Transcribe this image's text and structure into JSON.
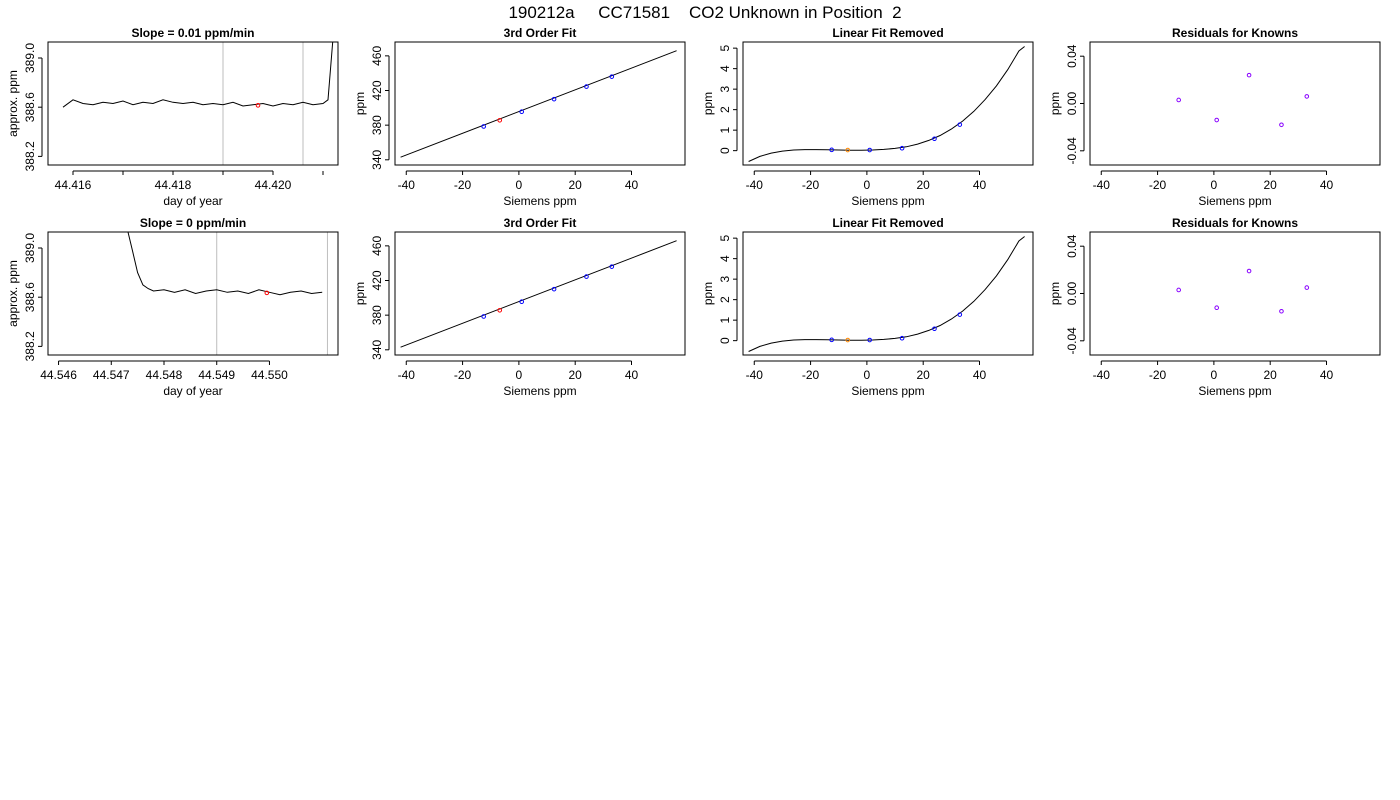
{
  "page_title": "190212a     CC71581    CO2 Unknown in Position  2",
  "colors": {
    "line": "#000000",
    "known_point": "#0000ff",
    "unknown_point": "#ff0000",
    "residual_point": "#8800ff",
    "unknown_removed_point": "#ff8800",
    "marker_line": "#bebebe"
  },
  "chart_data": [
    {
      "type": "line",
      "title": "Slope =  0.01  ppm/min",
      "xlabel": "day of year",
      "ylabel": "approx. ppm",
      "xlim": [
        44.4155,
        44.4213
      ],
      "ylim": [
        388.13,
        389.13
      ],
      "xticks": [
        "44.416",
        "44.418",
        "44.420"
      ],
      "xtick_values": [
        44.416,
        44.418,
        44.42
      ],
      "xminor_ticks": [
        44.417,
        44.419,
        44.421
      ],
      "yticks": [
        "388.2",
        "388.6",
        "389.0"
      ],
      "ytick_values": [
        388.2,
        388.6,
        389.0
      ],
      "markers_x": [
        44.419,
        44.4206
      ],
      "series": [
        {
          "x": [
            44.4158,
            44.416,
            44.4162,
            44.4164,
            44.4166,
            44.4168,
            44.417,
            44.4172,
            44.4174,
            44.4176,
            44.4178,
            44.418,
            44.4182,
            44.4184,
            44.4186,
            44.4188,
            44.419,
            44.4192,
            44.4194,
            44.4196,
            44.4198,
            44.42,
            44.4202,
            44.4204,
            44.4206,
            44.4208,
            44.421,
            44.4211,
            44.4212
          ],
          "y": [
            388.6,
            388.66,
            388.63,
            388.62,
            388.64,
            388.63,
            388.65,
            388.62,
            388.64,
            388.63,
            388.66,
            388.64,
            388.63,
            388.64,
            388.62,
            388.63,
            388.62,
            388.64,
            388.61,
            388.62,
            388.63,
            388.61,
            388.63,
            388.62,
            388.64,
            388.62,
            388.63,
            388.66,
            389.16
          ]
        }
      ],
      "highlight_point": {
        "x": 44.4197,
        "y": 388.615
      }
    },
    {
      "type": "scatter",
      "title": "3rd Order Fit",
      "xlabel": "Siemens ppm",
      "ylabel": "ppm",
      "xlim": [
        -44,
        59
      ],
      "ylim": [
        334,
        476
      ],
      "xticks": [
        "-40",
        "-20",
        "0",
        "20",
        "40"
      ],
      "xtick_values": [
        -40,
        -20,
        0,
        20,
        40
      ],
      "yticks": [
        "340",
        "380",
        "420",
        "460"
      ],
      "ytick_values": [
        340,
        380,
        420,
        460
      ],
      "fit_line": {
        "x": [
          -42,
          56
        ],
        "y": [
          343,
          466
        ]
      },
      "known_points": {
        "x": [
          -12.5,
          1,
          12.5,
          24,
          33
        ],
        "y": [
          378.5,
          395.5,
          410,
          424.5,
          436
        ]
      },
      "unknown_point": {
        "x": -6.8,
        "y": 385.6
      }
    },
    {
      "type": "line",
      "title": "Linear Fit Removed",
      "xlabel": "Siemens ppm",
      "ylabel": "ppm",
      "xlim": [
        -44,
        59
      ],
      "ylim": [
        -0.7,
        5.3
      ],
      "xticks": [
        "-40",
        "-20",
        "0",
        "20",
        "40"
      ],
      "xtick_values": [
        -40,
        -20,
        0,
        20,
        40
      ],
      "yticks": [
        "0",
        "1",
        "2",
        "3",
        "4",
        "5"
      ],
      "ytick_values": [
        0,
        1,
        2,
        3,
        4,
        5
      ],
      "curve": {
        "x": [
          -42,
          -38,
          -34,
          -30,
          -26,
          -22,
          -18,
          -14,
          -10,
          -6,
          -2,
          2,
          6,
          10,
          14,
          18,
          22,
          26,
          30,
          34,
          38,
          42,
          46,
          50,
          54,
          56
        ],
        "y": [
          -0.53,
          -0.28,
          -0.12,
          -0.02,
          0.03,
          0.05,
          0.05,
          0.04,
          0.03,
          0.02,
          0.02,
          0.03,
          0.06,
          0.11,
          0.19,
          0.32,
          0.5,
          0.74,
          1.05,
          1.44,
          1.92,
          2.49,
          3.16,
          3.95,
          4.86,
          5.08
        ]
      },
      "known_points": {
        "x": [
          -12.5,
          1,
          12.5,
          24,
          33
        ],
        "y": [
          0.04,
          0.03,
          0.12,
          0.58,
          1.27
        ]
      },
      "unknown_point": {
        "x": -6.8,
        "y": 0.03
      }
    },
    {
      "type": "scatter",
      "title": "Residuals for Knowns",
      "xlabel": "Siemens ppm",
      "ylabel": "ppm",
      "xlim": [
        -44,
        59
      ],
      "ylim": [
        -0.052,
        0.052
      ],
      "xticks": [
        "-40",
        "-20",
        "0",
        "20",
        "40"
      ],
      "xtick_values": [
        -40,
        -20,
        0,
        20,
        40
      ],
      "yticks": [
        "-0.04",
        "0.00",
        "0.04"
      ],
      "ytick_values": [
        -0.04,
        0.0,
        0.04
      ],
      "points": {
        "x": [
          -12.5,
          1,
          12.5,
          24,
          33
        ],
        "y": [
          0.003,
          -0.014,
          0.024,
          -0.018,
          0.006
        ]
      }
    },
    {
      "type": "line",
      "title": "Slope =  0  ppm/min",
      "xlabel": "day of year",
      "ylabel": "approx. ppm",
      "xlim": [
        44.5458,
        44.5513
      ],
      "ylim": [
        388.13,
        389.13
      ],
      "xticks": [
        "44.546",
        "44.547",
        "44.548",
        "44.549",
        "44.550"
      ],
      "xtick_values": [
        44.546,
        44.547,
        44.548,
        44.549,
        44.55
      ],
      "xminor_ticks": [],
      "yticks": [
        "388.2",
        "388.6",
        "389.0"
      ],
      "ytick_values": [
        388.2,
        388.6,
        389.0
      ],
      "markers_x": [
        44.549,
        44.5511
      ],
      "series": [
        {
          "x": [
            44.5473,
            44.5474,
            44.5475,
            44.5476,
            44.5477,
            44.5478,
            44.548,
            44.5482,
            44.5484,
            44.5486,
            44.5488,
            44.549,
            44.5492,
            44.5494,
            44.5496,
            44.5498,
            44.55,
            44.5502,
            44.5504,
            44.5506,
            44.5508,
            44.551
          ],
          "y": [
            389.16,
            388.98,
            388.8,
            388.7,
            388.67,
            388.65,
            388.66,
            388.64,
            388.66,
            388.63,
            388.65,
            388.66,
            388.64,
            388.65,
            388.63,
            388.66,
            388.64,
            388.62,
            388.64,
            388.65,
            388.63,
            388.64
          ]
        }
      ],
      "highlight_point": {
        "x": 44.54995,
        "y": 388.635
      }
    },
    {
      "type": "scatter",
      "title": "3rd Order Fit",
      "xlabel": "Siemens ppm",
      "ylabel": "ppm",
      "xlim": [
        -44,
        59
      ],
      "ylim": [
        334,
        476
      ],
      "xticks": [
        "-40",
        "-20",
        "0",
        "20",
        "40"
      ],
      "xtick_values": [
        -40,
        -20,
        0,
        20,
        40
      ],
      "yticks": [
        "340",
        "380",
        "420",
        "460"
      ],
      "ytick_values": [
        340,
        380,
        420,
        460
      ],
      "fit_line": {
        "x": [
          -42,
          56
        ],
        "y": [
          343,
          466
        ]
      },
      "known_points": {
        "x": [
          -12.5,
          1,
          12.5,
          24,
          33
        ],
        "y": [
          378.5,
          395.5,
          410,
          424.5,
          436
        ]
      },
      "unknown_point": {
        "x": -6.8,
        "y": 385.6
      }
    },
    {
      "type": "line",
      "title": "Linear Fit Removed",
      "xlabel": "Siemens ppm",
      "ylabel": "ppm",
      "xlim": [
        -44,
        59
      ],
      "ylim": [
        -0.7,
        5.3
      ],
      "xticks": [
        "-40",
        "-20",
        "0",
        "20",
        "40"
      ],
      "xtick_values": [
        -40,
        -20,
        0,
        20,
        40
      ],
      "yticks": [
        "0",
        "1",
        "2",
        "3",
        "4",
        "5"
      ],
      "ytick_values": [
        0,
        1,
        2,
        3,
        4,
        5
      ],
      "curve": {
        "x": [
          -42,
          -38,
          -34,
          -30,
          -26,
          -22,
          -18,
          -14,
          -10,
          -6,
          -2,
          2,
          6,
          10,
          14,
          18,
          22,
          26,
          30,
          34,
          38,
          42,
          46,
          50,
          54,
          56
        ],
        "y": [
          -0.53,
          -0.28,
          -0.12,
          -0.02,
          0.03,
          0.05,
          0.05,
          0.04,
          0.03,
          0.02,
          0.02,
          0.03,
          0.06,
          0.11,
          0.19,
          0.32,
          0.5,
          0.74,
          1.05,
          1.44,
          1.92,
          2.49,
          3.16,
          3.95,
          4.86,
          5.08
        ]
      },
      "known_points": {
        "x": [
          -12.5,
          1,
          12.5,
          24,
          33
        ],
        "y": [
          0.04,
          0.03,
          0.12,
          0.58,
          1.27
        ]
      },
      "unknown_point": {
        "x": -6.8,
        "y": 0.03
      }
    },
    {
      "type": "scatter",
      "title": "Residuals for Knowns",
      "xlabel": "Siemens ppm",
      "ylabel": "ppm",
      "xlim": [
        -44,
        59
      ],
      "ylim": [
        -0.052,
        0.052
      ],
      "xticks": [
        "-40",
        "-20",
        "0",
        "20",
        "40"
      ],
      "xtick_values": [
        -40,
        -20,
        0,
        20,
        40
      ],
      "yticks": [
        "-0.04",
        "0.00",
        "0.04"
      ],
      "ytick_values": [
        -0.04,
        0.0,
        0.04
      ],
      "points": {
        "x": [
          -12.5,
          1,
          12.5,
          24,
          33
        ],
        "y": [
          0.003,
          -0.012,
          0.019,
          -0.015,
          0.005
        ]
      }
    }
  ]
}
